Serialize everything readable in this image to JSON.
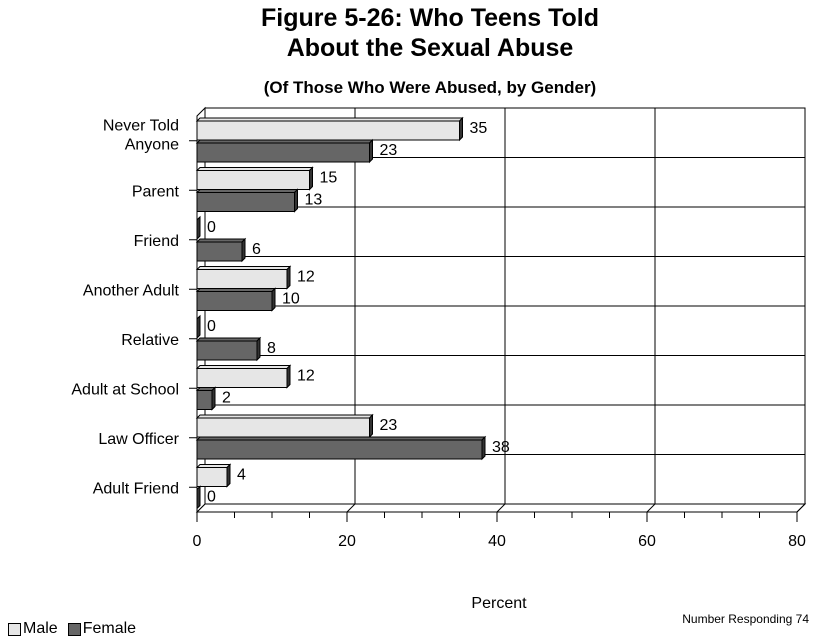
{
  "chart_data": {
    "type": "bar",
    "orientation": "horizontal",
    "title_lines": [
      "Figure 5-26:  Who Teens Told",
      "About the Sexual Abuse"
    ],
    "subtitle": "(Of Those Who Were Abused, by Gender)",
    "categories": [
      [
        "Never Told",
        "Anyone"
      ],
      [
        "Parent"
      ],
      [
        "Friend"
      ],
      [
        "Another Adult"
      ],
      [
        "Relative"
      ],
      [
        "Adult at School"
      ],
      [
        "Law Officer"
      ],
      [
        "Adult Friend"
      ]
    ],
    "series": [
      {
        "name": "Male",
        "color": "#e6e6e6",
        "values": [
          35,
          15,
          0,
          12,
          0,
          12,
          23,
          4
        ]
      },
      {
        "name": "Female",
        "color": "#666666",
        "values": [
          23,
          13,
          6,
          10,
          8,
          2,
          38,
          0
        ]
      }
    ],
    "xlabel": "Percent",
    "xlim": [
      0,
      80
    ],
    "xticks": [
      0,
      20,
      40,
      60,
      80
    ],
    "grid": true,
    "legend_position": "bottom-left",
    "note": "Number Responding 74"
  }
}
